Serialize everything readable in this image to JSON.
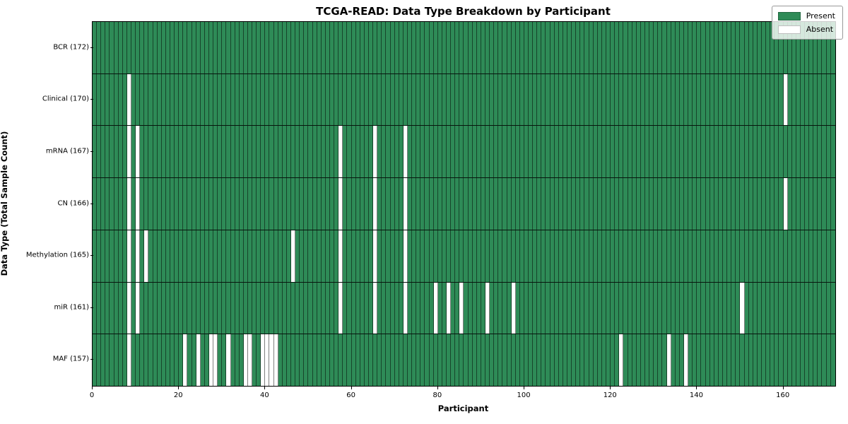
{
  "title": "TCGA-READ: Data Type Breakdown by Participant",
  "x_axis": {
    "label": "Participant",
    "ticks": [
      0,
      20,
      40,
      60,
      80,
      100,
      120,
      140,
      160
    ],
    "min": 0,
    "max": 172
  },
  "y_axis": {
    "label": "Data Type (Total Sample Count)"
  },
  "legend": {
    "present_label": "Present",
    "absent_label": "Absent"
  },
  "colors": {
    "present": "#2E8B57",
    "absent": "#FFFFFF",
    "grid_line": "rgba(0,0,0,0.5)",
    "row_separator": "#000000",
    "legend_border": "#999999"
  },
  "chart_data": {
    "type": "heatmap",
    "title": "TCGA-READ: Data Type Breakdown by Participant",
    "xlabel": "Participant",
    "ylabel": "Data Type (Total Sample Count)",
    "n_participants": 172,
    "legend_position": "upper right",
    "value_legend": {
      "1": "Present",
      "0": "Absent"
    },
    "rows": [
      {
        "label": "BCR (172)",
        "data_type": "BCR",
        "present_count": 172,
        "absent_participants": []
      },
      {
        "label": "Clinical (170)",
        "data_type": "Clinical",
        "present_count": 170,
        "absent_participants": [
          8,
          160
        ]
      },
      {
        "label": "mRNA (167)",
        "data_type": "mRNA",
        "present_count": 167,
        "absent_participants": [
          8,
          10,
          57,
          65,
          72
        ]
      },
      {
        "label": "CN (166)",
        "data_type": "CN",
        "present_count": 166,
        "absent_participants": [
          8,
          10,
          57,
          65,
          72,
          160
        ]
      },
      {
        "label": "Methylation (165)",
        "data_type": "Methylation",
        "present_count": 165,
        "absent_participants": [
          8,
          10,
          12,
          46,
          57,
          65,
          72
        ]
      },
      {
        "label": "miR (161)",
        "data_type": "miR",
        "present_count": 161,
        "absent_participants": [
          8,
          10,
          57,
          65,
          72,
          79,
          82,
          85,
          91,
          97,
          150
        ]
      },
      {
        "label": "MAF (157)",
        "data_type": "MAF",
        "present_count": 157,
        "absent_participants": [
          8,
          21,
          24,
          27,
          28,
          31,
          35,
          36,
          39,
          40,
          41,
          42,
          122,
          133,
          137
        ]
      }
    ]
  }
}
